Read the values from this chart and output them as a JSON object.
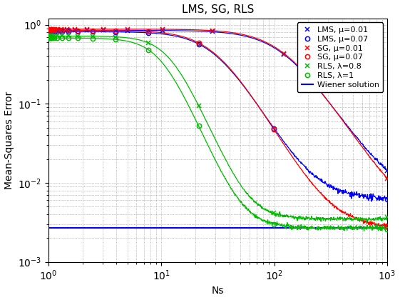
{
  "title": "LMS, SG, RLS",
  "xlabel": "Ns",
  "ylabel": "Mean-Squares Error",
  "xlim": [
    1,
    1000
  ],
  "ylim": [
    0.001,
    1.2
  ],
  "wiener_level": 0.0027,
  "lms_mu01_floor": 0.0062,
  "lms_mu07_floor": 0.0062,
  "sg_mu01_floor": 0.0027,
  "sg_mu07_floor": 0.0027,
  "rls_08_floor": 0.0035,
  "rls_1_floor": 0.0027,
  "blue_color": "#0000FF",
  "red_color": "#FF0000",
  "green_color": "#00BB00",
  "wiener_color": "#0000FF",
  "black_color": "#000000",
  "legend_labels": [
    "LMS, μ=0.01",
    "LMS, μ=0.07",
    "SG, μ=0.01",
    "SG, μ=0.07",
    "RLS, λ=0.8",
    "RLS, λ=1",
    "Wiener solution"
  ]
}
